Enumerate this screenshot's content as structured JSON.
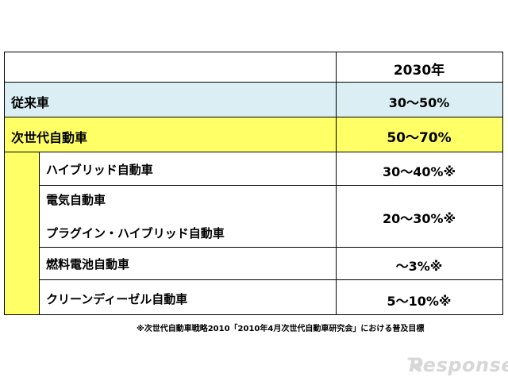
{
  "table": {
    "header": {
      "col_label": "",
      "col_value": "2030年"
    },
    "rows": [
      {
        "label": "従来車",
        "value": "30～50%"
      },
      {
        "label": "次世代自動車",
        "value": "50～70%"
      }
    ],
    "sub_rows": [
      {
        "labels": [
          "ハイブリッド自動車"
        ],
        "value": "30～40%※"
      },
      {
        "labels": [
          "電気自動車",
          "プラグイン・ハイブリッド自動車"
        ],
        "value": "20～30%※"
      },
      {
        "labels": [
          "燃料電池自動車"
        ],
        "value": "～3%※"
      },
      {
        "labels": [
          "クリーンディーゼル自動車"
        ],
        "value": "5～10%※"
      }
    ],
    "footnote": "※次世代自動車戦略2010「2010年4月次世代自動車研究会」における普及目標"
  },
  "watermark": {
    "text": "Response."
  },
  "colors": {
    "row_conventional_bg": "#daeef3",
    "row_nextgen_bg": "#ffff66",
    "border": "#000000",
    "watermark": "#d7d7d7"
  }
}
